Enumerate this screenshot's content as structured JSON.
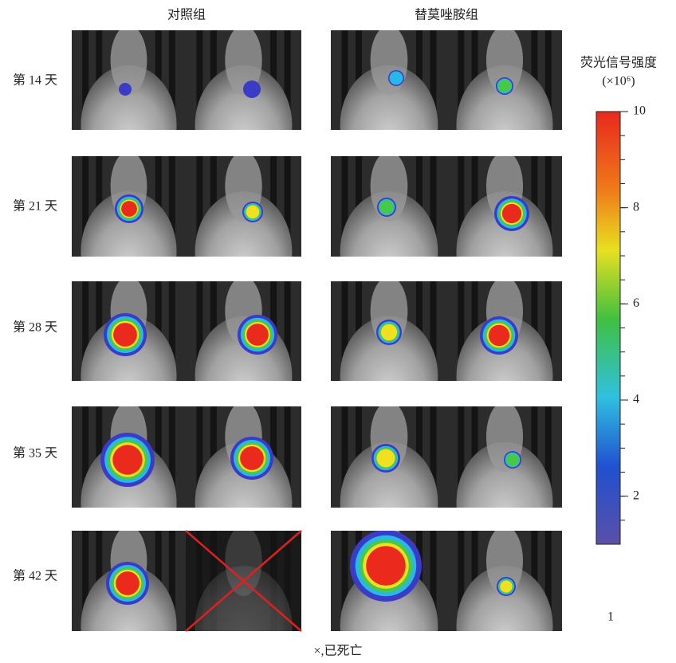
{
  "column_headers": [
    "对照组",
    "替莫唑胺组"
  ],
  "row_labels": [
    "第 14 天",
    "第 21 天",
    "第 28 天",
    "第 35 天",
    "第 42 天"
  ],
  "colorbar": {
    "title": "荧光信号强度",
    "unit": "(×10⁶)",
    "range": [
      1,
      10
    ],
    "ticks": [
      10,
      8,
      6,
      4,
      2
    ]
  },
  "footnote": "×,已死亡"
}
